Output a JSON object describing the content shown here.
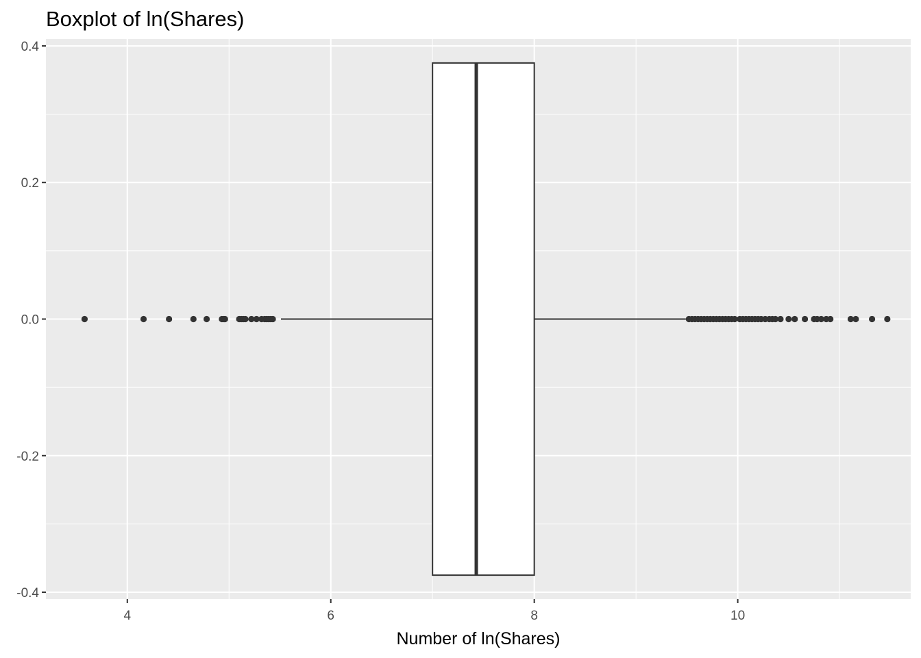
{
  "chart_data": {
    "type": "boxplot",
    "title": "Boxplot of ln(Shares)",
    "xlabel": "Number of ln(Shares)",
    "ylabel": "",
    "xlim": [
      3.2,
      11.7
    ],
    "ylim": [
      -0.41,
      0.41
    ],
    "x_ticks": [
      4,
      6,
      8,
      10
    ],
    "x_tick_labels": [
      "4",
      "6",
      "8",
      "10"
    ],
    "y_ticks": [
      -0.4,
      -0.2,
      0.0,
      0.2,
      0.4
    ],
    "y_tick_labels": [
      "-0.4",
      "-0.2",
      "0.0",
      "0.2",
      "0.4"
    ],
    "grid": true,
    "box": {
      "q1": 7.0,
      "median": 7.43,
      "q3": 8.0,
      "whisker_low": 5.51,
      "whisker_high": 9.49,
      "y_center": 0.0,
      "half_width": 0.375
    },
    "outliers": [
      3.58,
      4.16,
      4.41,
      4.65,
      4.78,
      4.93,
      4.95,
      4.96,
      5.1,
      5.12,
      5.14,
      5.16,
      5.22,
      5.27,
      5.32,
      5.35,
      5.37,
      5.39,
      5.41,
      5.43,
      9.52,
      9.55,
      9.58,
      9.61,
      9.64,
      9.67,
      9.7,
      9.73,
      9.76,
      9.79,
      9.82,
      9.85,
      9.88,
      9.91,
      9.94,
      9.97,
      10.02,
      10.05,
      10.08,
      10.11,
      10.14,
      10.17,
      10.2,
      10.23,
      10.27,
      10.31,
      10.34,
      10.37,
      10.42,
      10.5,
      10.56,
      10.66,
      10.75,
      10.78,
      10.82,
      10.87,
      10.91,
      11.11,
      11.16,
      11.32,
      11.47
    ],
    "colors": {
      "panel_bg": "#ebebeb",
      "grid_major": "#ffffff",
      "box_fill": "#ffffff",
      "box_stroke": "#333333",
      "outlier": "#333333",
      "tick_text": "#4d4d4d",
      "tick_mark": "#333333"
    }
  }
}
